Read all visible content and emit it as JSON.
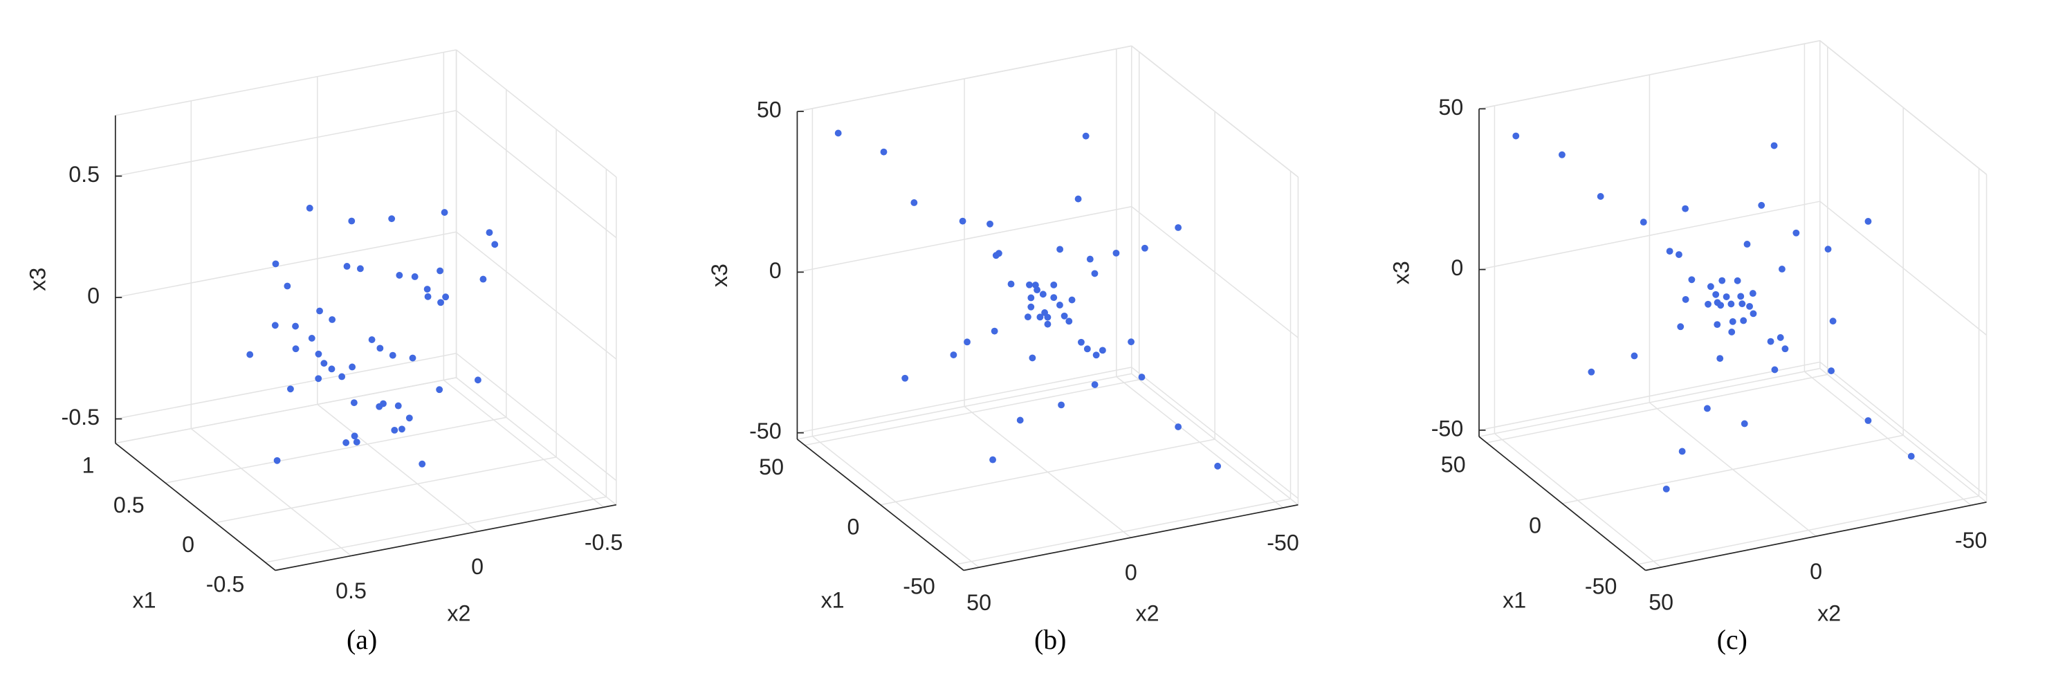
{
  "chart_data": [
    {
      "type": "scatter3d",
      "caption": "(a)",
      "xlabel": "x1",
      "ylabel": "x2",
      "zlabel": "x3",
      "color": "#4169e1",
      "grid": true,
      "xlim": [
        -0.6,
        1
      ],
      "ylim": [
        -0.55,
        0.8
      ],
      "zlim": [
        -0.6,
        0.75
      ],
      "xticks": [
        -0.5,
        0,
        0.5,
        1
      ],
      "yticks": [
        -0.5,
        0,
        0.5
      ],
      "zticks": [
        -0.5,
        0,
        0.5
      ],
      "x": [
        0.12,
        -0.05,
        0.3,
        0.22,
        -0.15,
        0.4,
        0.05,
        0.18,
        -0.25,
        0.33,
        0.1,
        -0.02,
        0.25,
        0.45,
        -0.1,
        0.15,
        0.28,
        -0.3,
        0.08,
        0.2,
        0.52,
        -0.18,
        0.36,
        0.02,
        0.14,
        -0.08,
        0.6,
        0.26,
        -0.35,
        0.11,
        0.19,
        0.42,
        -0.12,
        0.07,
        0.31,
        0.24,
        -0.22,
        0.48,
        0.0,
        0.16,
        0.38,
        -0.05,
        0.66,
        0.09,
        0.21,
        -0.4,
        0.29,
        0.13,
        0.03,
        0.5
      ],
      "y": [
        0.05,
        0.2,
        -0.1,
        0.3,
        0.15,
        -0.2,
        0.35,
        0.0,
        0.25,
        0.12,
        -0.3,
        0.4,
        0.18,
        0.08,
        -0.05,
        0.28,
        -0.15,
        0.1,
        0.45,
        0.22,
        0.02,
        0.32,
        -0.25,
        0.14,
        0.5,
        -0.08,
        0.1,
        0.38,
        0.2,
        -0.35,
        0.06,
        0.26,
        0.55,
        -0.12,
        0.16,
        0.42,
        0.0,
        -0.18,
        0.24,
        0.6,
        0.11,
        -0.22,
        0.3,
        0.04,
        0.48,
        0.19,
        -0.4,
        0.34,
        0.09,
        0.22
      ],
      "z": [
        -0.1,
        0.05,
        -0.2,
        0.1,
        -0.3,
        0.0,
        -0.05,
        0.2,
        -0.15,
        -0.35,
        0.15,
        -0.08,
        0.25,
        -0.25,
        0.3,
        -0.12,
        0.08,
        -0.4,
        0.02,
        -0.18,
        0.12,
        -0.28,
        0.35,
        -0.02,
        -0.45,
        0.18,
        -0.1,
        0.04,
        -0.22,
        0.28,
        -0.32,
        0.45,
        -0.06,
        0.1,
        -0.5,
        0.22,
        -0.14,
        0.06,
        -0.38,
        0.0,
        0.38,
        -0.2,
        0.15,
        -0.3,
        0.08,
        -0.16,
        0.26,
        -0.04,
        0.5,
        -0.12
      ]
    },
    {
      "type": "scatter3d",
      "caption": "(b)",
      "xlabel": "x1",
      "ylabel": "x2",
      "zlabel": "x3",
      "color": "#4169e1",
      "grid": true,
      "xlim": [
        -55,
        55
      ],
      "ylim": [
        -55,
        55
      ],
      "zlim": [
        -52,
        50
      ],
      "xticks": [
        -50,
        0,
        50
      ],
      "yticks": [
        -50,
        0,
        50
      ],
      "zticks": [
        -50,
        0,
        50
      ],
      "x": [
        2,
        -4,
        5,
        -1,
        3,
        -6,
        1,
        4,
        -3,
        0,
        7,
        -2,
        6,
        -5,
        2,
        12,
        20,
        28,
        38,
        48,
        -12,
        -22,
        -30,
        -40,
        10,
        18,
        30,
        40,
        -10,
        -20,
        -28,
        11,
        22,
        30,
        -11,
        -20,
        -30,
        12,
        24,
        35,
        -12,
        -22,
        -32,
        -15,
        5,
        8,
        -18,
        3,
        -25,
        15
      ],
      "y": [
        -3,
        2,
        1,
        -5,
        4,
        -1,
        6,
        -4,
        3,
        0,
        2,
        -7,
        -2,
        5,
        3,
        11,
        18,
        30,
        35,
        45,
        -10,
        -20,
        -28,
        -36,
        -12,
        -20,
        -28,
        -38,
        11,
        22,
        30,
        12,
        20,
        32,
        -10,
        -22,
        -28,
        -10,
        -22,
        -30,
        11,
        20,
        34,
        3,
        -18,
        15,
        -5,
        25,
        -15,
        -30
      ],
      "z": [
        1,
        -2,
        3,
        -4,
        -1,
        2,
        -3,
        4,
        5,
        -6,
        0,
        1,
        -5,
        -1,
        6,
        13,
        22,
        27,
        40,
        44,
        -13,
        -18,
        -32,
        -42,
        -11,
        -22,
        -30,
        -36,
        12,
        18,
        32,
        -10,
        -20,
        -28,
        12,
        21,
        30,
        11,
        20,
        34,
        -10,
        -24,
        -30,
        -25,
        -30,
        25,
        20,
        -8,
        -5,
        5
      ]
    },
    {
      "type": "scatter3d",
      "caption": "(c)",
      "xlabel": "x1",
      "ylabel": "x2",
      "zlabel": "x3",
      "color": "#4169e1",
      "grid": true,
      "xlim": [
        -55,
        55
      ],
      "ylim": [
        -55,
        55
      ],
      "zlim": [
        -52,
        50
      ],
      "xticks": [
        -50,
        0,
        50
      ],
      "yticks": [
        -50,
        0,
        50
      ],
      "zticks": [
        -50,
        0,
        50
      ],
      "x": [
        -3,
        2,
        1,
        -5,
        4,
        -1,
        6,
        -4,
        3,
        0,
        2,
        -7,
        -2,
        5,
        3,
        11,
        18,
        30,
        35,
        45,
        -10,
        -20,
        -28,
        -36,
        -12,
        -20,
        -28,
        -38,
        11,
        22,
        30,
        12,
        20,
        32,
        -10,
        -22,
        -28,
        -10,
        -22,
        -30,
        11,
        20,
        34,
        3,
        -18,
        15,
        -5,
        25,
        -15,
        -30
      ],
      "y": [
        2,
        -4,
        5,
        -1,
        3,
        -6,
        1,
        4,
        -3,
        0,
        7,
        -2,
        6,
        -5,
        2,
        12,
        20,
        28,
        38,
        48,
        -12,
        -22,
        -30,
        -40,
        10,
        18,
        30,
        40,
        -10,
        -20,
        -28,
        11,
        22,
        30,
        -11,
        -20,
        -30,
        12,
        24,
        35,
        -12,
        -22,
        -32,
        -15,
        5,
        8,
        -18,
        3,
        -25,
        15
      ],
      "z": [
        1,
        -2,
        3,
        -4,
        -1,
        2,
        -3,
        4,
        5,
        -6,
        0,
        1,
        -5,
        -1,
        6,
        13,
        22,
        27,
        40,
        44,
        -13,
        -18,
        -32,
        -42,
        -11,
        -22,
        -30,
        -36,
        12,
        18,
        32,
        -10,
        -20,
        -28,
        12,
        21,
        30,
        11,
        20,
        34,
        -10,
        -24,
        -30,
        -25,
        -30,
        25,
        20,
        -8,
        -5,
        5
      ]
    }
  ]
}
